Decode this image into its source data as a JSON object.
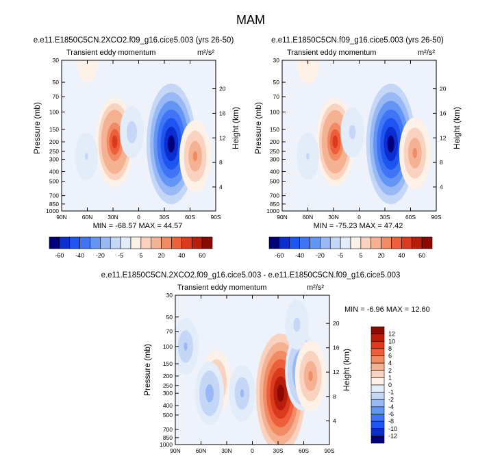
{
  "figure_title": "MAM",
  "chart_data": [
    {
      "type": "heatmap",
      "id": "p1",
      "title": "e.e11.E1850C5CN.2XCO2.f09_g16.cice5.003 (yrs 26-50)",
      "left_label": "Transient eddy momentum",
      "units_label": "m²/s²",
      "xlabel": "",
      "ylabel": "Pressure (mb)",
      "y2label": "Height (km)",
      "x_ticks": [
        "90N",
        "60N",
        "30N",
        "0",
        "30S",
        "60S",
        "90S"
      ],
      "y_ticks": [
        "30",
        "50",
        "70",
        "100",
        "150",
        "200",
        "250",
        "300",
        "400",
        "500",
        "700",
        "850",
        "1000"
      ],
      "y2_ticks": [
        "20",
        "16",
        "12",
        "8",
        "4"
      ],
      "xlim": [
        90,
        -90
      ],
      "ylim": [
        1000,
        30
      ],
      "stats_text": "MIN = -68.57  MAX = 44.57",
      "features": [
        {
          "lat": 28,
          "p": 200,
          "value": 42
        },
        {
          "lat": -38,
          "p": 210,
          "value": -66
        },
        {
          "lat": -66,
          "p": 280,
          "value": 28
        },
        {
          "lat": 61,
          "p": 280,
          "value": -9
        },
        {
          "lat": 60,
          "p": 30,
          "value": 7
        },
        {
          "lat": 8,
          "p": 160,
          "value": -12
        }
      ]
    },
    {
      "type": "heatmap",
      "id": "p2",
      "title": "e.e11.E1850C5CN.f09_g16.cice5.003 (yrs 26-50)",
      "left_label": "Transient eddy momentum",
      "units_label": "m²/s²",
      "xlabel": "",
      "ylabel": "Pressure (mb)",
      "y2label": "Height (km)",
      "x_ticks": [
        "90N",
        "60N",
        "30N",
        "0",
        "30S",
        "60S",
        "90S"
      ],
      "y_ticks": [
        "30",
        "50",
        "70",
        "100",
        "150",
        "200",
        "250",
        "300",
        "400",
        "500",
        "700",
        "850",
        "1000"
      ],
      "y2_ticks": [
        "20",
        "16",
        "12",
        "8",
        "4"
      ],
      "xlim": [
        90,
        -90
      ],
      "ylim": [
        1000,
        30
      ],
      "stats_text": "MIN = -75.23  MAX = 47.42",
      "features": [
        {
          "lat": 28,
          "p": 200,
          "value": 45
        },
        {
          "lat": -37,
          "p": 210,
          "value": -72
        },
        {
          "lat": -65,
          "p": 260,
          "value": 30
        },
        {
          "lat": 60,
          "p": 280,
          "value": -9
        },
        {
          "lat": 60,
          "p": 30,
          "value": 10
        },
        {
          "lat": 8,
          "p": 160,
          "value": -12
        }
      ]
    },
    {
      "type": "heatmap",
      "id": "p3",
      "title": "e.e11.E1850C5CN.2XCO2.f09_g16.cice5.003 - e.e11.E1850C5CN.f09_g16.cice5.003",
      "left_label": "Transient eddy momentum",
      "units_label": "m²/s²",
      "xlabel": "",
      "ylabel": "Pressure (mb)",
      "y2label": "Height (km)",
      "x_ticks": [
        "90N",
        "60N",
        "30N",
        "0",
        "30S",
        "60S",
        "90S"
      ],
      "y_ticks": [
        "30",
        "50",
        "70",
        "100",
        "150",
        "200",
        "250",
        "300",
        "400",
        "500",
        "700",
        "850",
        "1000"
      ],
      "y2_ticks": [
        "20",
        "16",
        "12",
        "8",
        "4"
      ],
      "xlim": [
        90,
        -90
      ],
      "ylim": [
        1000,
        30
      ],
      "stats_text": "MIN = -6.96  MAX = 12.60",
      "features": [
        {
          "lat": -33,
          "p": 300,
          "value": 12
        },
        {
          "lat": 42,
          "p": 230,
          "value": 4
        },
        {
          "lat": 50,
          "p": 300,
          "value": -4
        },
        {
          "lat": -58,
          "p": 180,
          "value": -6
        },
        {
          "lat": -68,
          "p": 200,
          "value": 5
        },
        {
          "lat": 78,
          "p": 100,
          "value": -3
        },
        {
          "lat": 12,
          "p": 300,
          "value": -3
        },
        {
          "lat": -52,
          "p": 60,
          "value": -2
        }
      ]
    }
  ],
  "colorbar_top": {
    "labels": [
      "-60",
      "-40",
      "-20",
      "-5",
      "5",
      "20",
      "40",
      "60"
    ],
    "colors": [
      "#00007a",
      "#0a2ed1",
      "#1d55f0",
      "#3e74f5",
      "#6395f5",
      "#98b9f5",
      "#c4d7f7",
      "#e3ecf9",
      "#fdf1e8",
      "#f9d3bf",
      "#f5b293",
      "#f18b63",
      "#ec5f3a",
      "#dc3a1c",
      "#b81c0a",
      "#8a0a00"
    ]
  },
  "colorbar_bottom": {
    "labels": [
      "12",
      "10",
      "8",
      "6",
      "4",
      "2",
      "1",
      "0",
      "-1",
      "-2",
      "-4",
      "-6",
      "-8",
      "-10",
      "-12"
    ],
    "colors": [
      "#8a0a00",
      "#b81c0a",
      "#dc3a1c",
      "#ec5f3a",
      "#f18b63",
      "#f5b293",
      "#f9d3bf",
      "#fdf1e8",
      "#e3ecf9",
      "#c4d7f7",
      "#98b9f5",
      "#6395f5",
      "#3e74f5",
      "#1d55f0",
      "#0a2ed1",
      "#00007a"
    ]
  }
}
